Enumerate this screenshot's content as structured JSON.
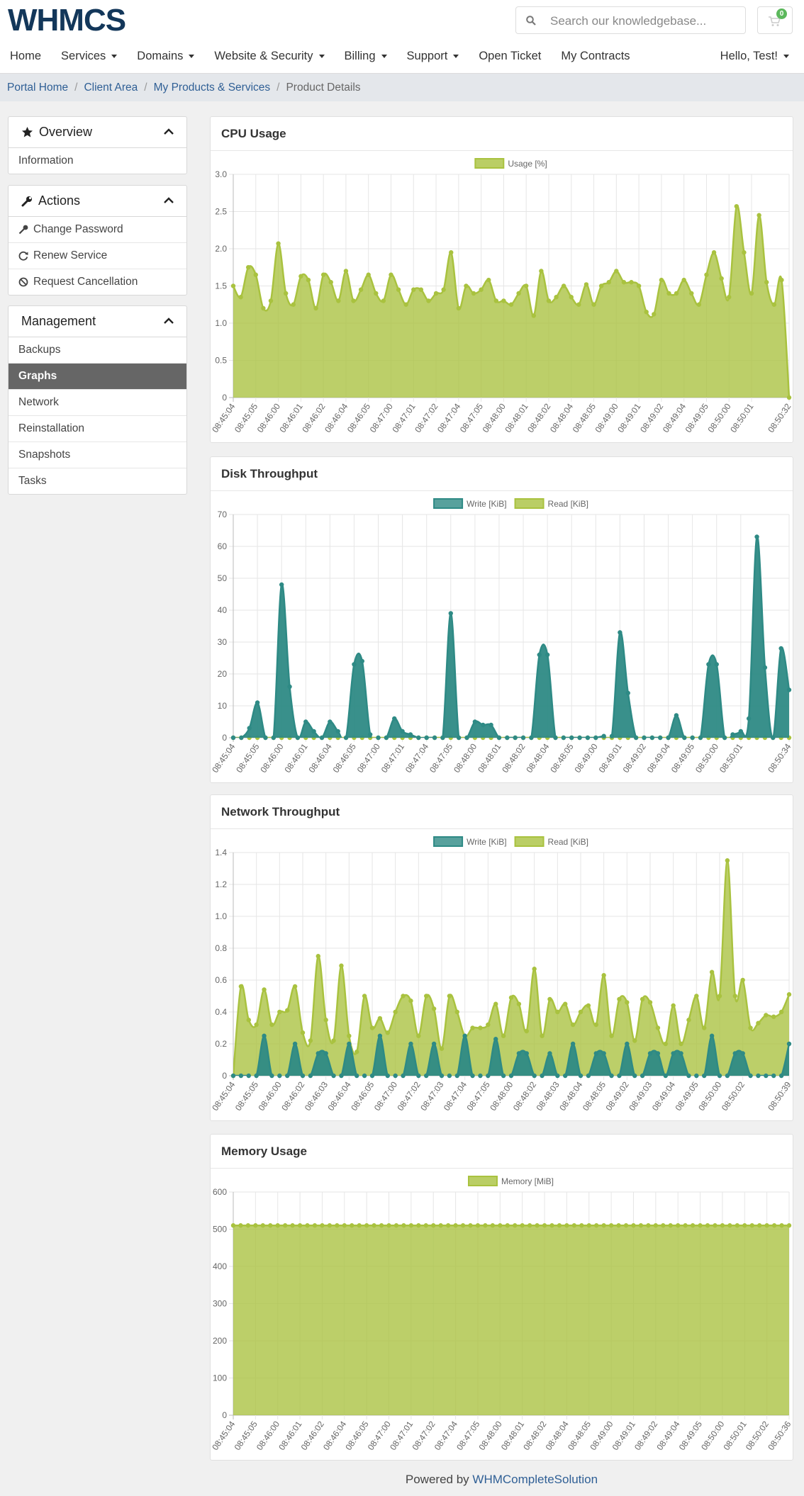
{
  "header": {
    "logo": "WHMCS",
    "search_placeholder": "Search our knowledgebase...",
    "cart_count": 0
  },
  "nav": {
    "items": [
      {
        "label": "Home",
        "dropdown": false
      },
      {
        "label": "Services",
        "dropdown": true
      },
      {
        "label": "Domains",
        "dropdown": true
      },
      {
        "label": "Website & Security",
        "dropdown": true
      },
      {
        "label": "Billing",
        "dropdown": true
      },
      {
        "label": "Support",
        "dropdown": true
      },
      {
        "label": "Open Ticket",
        "dropdown": false
      },
      {
        "label": "My Contracts",
        "dropdown": false
      }
    ],
    "user": "Hello, Test!"
  },
  "breadcrumb": [
    "Portal Home",
    "Client Area",
    "My Products & Services",
    "Product Details"
  ],
  "sidebar": [
    {
      "title": "Overview",
      "items": [
        "Information"
      ]
    },
    {
      "title": "Actions",
      "items": [
        "Change Password",
        "Renew Service",
        "Request Cancellation"
      ]
    },
    {
      "title": "Management",
      "items": [
        "Backups",
        "Graphs",
        "Network",
        "Reinstallation",
        "Snapshots",
        "Tasks"
      ],
      "active": 1
    }
  ],
  "footer": {
    "text": "Powered by",
    "link": "WHMCompleteSolution"
  },
  "chart_data": [
    {
      "type": "area",
      "title": "CPU Usage",
      "categories": [
        "08:45:04",
        null,
        null,
        "08:45:05",
        null,
        null,
        "08:46:00",
        null,
        null,
        "08:46:01",
        null,
        null,
        "08:46:02",
        null,
        null,
        "08:46:04",
        null,
        null,
        "08:46:05",
        null,
        null,
        "08:47:00",
        null,
        null,
        "08:47:01",
        null,
        null,
        "08:47:02",
        null,
        null,
        "08:47:04",
        null,
        null,
        "08:47:05",
        null,
        null,
        "08:48:00",
        null,
        null,
        "08:48:01",
        null,
        null,
        "08:48:02",
        null,
        null,
        "08:48:04",
        null,
        null,
        "08:48:05",
        null,
        null,
        "08:49:00",
        null,
        null,
        "08:49:01",
        null,
        null,
        "08:49:02",
        null,
        null,
        "08:49:04",
        null,
        null,
        "08:49:05",
        null,
        null,
        "08:50:00",
        null,
        null,
        "08:50:01",
        null,
        null,
        null,
        null,
        "08:50:32"
      ],
      "series": [
        {
          "name": "Usage [%]",
          "color": "#a9c23f",
          "values": [
            1.5,
            1.35,
            1.75,
            1.65,
            1.2,
            1.3,
            2.07,
            1.4,
            1.25,
            1.63,
            1.58,
            1.2,
            1.65,
            1.55,
            1.3,
            1.7,
            1.3,
            1.45,
            1.65,
            1.4,
            1.3,
            1.65,
            1.45,
            1.25,
            1.45,
            1.45,
            1.3,
            1.4,
            1.45,
            1.95,
            1.2,
            1.5,
            1.4,
            1.45,
            1.58,
            1.3,
            1.3,
            1.25,
            1.4,
            1.5,
            1.1,
            1.7,
            1.3,
            1.35,
            1.5,
            1.35,
            1.25,
            1.52,
            1.25,
            1.5,
            1.55,
            1.7,
            1.55,
            1.55,
            1.5,
            1.15,
            1.12,
            1.58,
            1.4,
            1.4,
            1.58,
            1.4,
            1.25,
            1.65,
            1.95,
            1.6,
            1.35,
            2.57,
            1.95,
            1.4,
            2.45,
            1.55,
            1.25,
            1.58,
            0
          ]
        }
      ],
      "ylim": [
        0,
        3
      ],
      "yticks": [
        0,
        0.5,
        {
          "value": 1,
          "label": "1.0"
        },
        1.5,
        {
          "value": 2,
          "label": "2.0"
        },
        2.5,
        {
          "value": 3,
          "label": "3.0"
        }
      ],
      "grid": true,
      "legend": "top"
    },
    {
      "type": "area",
      "title": "Disk Throughput",
      "categories": [
        "08:45:04",
        null,
        null,
        "08:45:05",
        null,
        null,
        "08:46:00",
        null,
        null,
        "08:46:01",
        null,
        null,
        "08:46:04",
        null,
        null,
        "08:46:05",
        null,
        null,
        "08:47:00",
        null,
        null,
        "08:47:01",
        null,
        null,
        "08:47:04",
        null,
        null,
        "08:47:05",
        null,
        null,
        "08:48:00",
        null,
        null,
        "08:48:01",
        null,
        null,
        "08:48:02",
        null,
        null,
        "08:48:04",
        null,
        null,
        "08:48:05",
        null,
        null,
        "08:49:00",
        null,
        null,
        "08:49:01",
        null,
        null,
        "08:49:02",
        null,
        null,
        "08:49:04",
        null,
        null,
        "08:49:05",
        null,
        null,
        "08:50:00",
        null,
        null,
        "08:50:01",
        null,
        null,
        null,
        null,
        null,
        "08:50:34"
      ],
      "series": [
        {
          "name": "Write [KiB]",
          "color": "#2e8a85",
          "values": [
            0,
            0,
            3,
            11,
            0,
            0,
            48,
            16,
            0,
            5,
            2,
            0,
            5,
            2,
            0,
            23,
            24,
            1,
            0,
            0,
            6,
            2,
            1,
            0,
            0,
            0,
            0,
            39,
            0,
            0,
            5,
            4,
            4,
            0,
            0,
            0,
            0,
            0,
            26,
            26,
            0,
            0,
            0,
            0,
            0,
            0,
            0.5,
            0.5,
            33,
            14,
            0,
            0,
            0,
            0,
            0,
            7,
            0,
            0,
            0,
            23,
            23,
            0,
            1,
            2,
            6,
            63,
            22,
            0,
            28,
            15
          ]
        },
        {
          "name": "Read [KiB]",
          "color": "#a9c23f",
          "values": [
            0,
            0,
            0,
            0,
            0,
            0,
            0,
            0,
            0,
            0,
            0,
            0,
            0,
            0,
            0,
            0,
            0,
            0,
            0,
            0,
            0,
            0,
            0,
            0,
            0,
            0,
            0,
            0,
            0,
            0,
            0,
            0,
            0,
            0,
            0,
            0,
            0,
            0,
            0,
            0,
            0,
            0,
            0,
            0,
            0,
            0,
            0,
            0,
            0,
            0,
            0,
            0,
            0,
            0,
            0,
            0,
            0,
            0,
            0,
            0,
            0,
            0,
            0,
            0,
            0,
            0,
            0,
            0,
            0,
            0
          ]
        }
      ],
      "ylim": [
        0,
        70
      ],
      "yticks": [
        0,
        10,
        20,
        30,
        40,
        50,
        60,
        70
      ],
      "grid": true,
      "legend": "top"
    },
    {
      "type": "area",
      "title": "Network Throughput",
      "categories": [
        "08:45:04",
        null,
        null,
        "08:45:05",
        null,
        null,
        "08:46:00",
        null,
        null,
        "08:46:02",
        null,
        null,
        "08:46:03",
        null,
        null,
        "08:46:04",
        null,
        null,
        "08:46:05",
        null,
        null,
        "08:47:00",
        null,
        null,
        "08:47:02",
        null,
        null,
        "08:47:03",
        null,
        null,
        "08:47:04",
        null,
        null,
        "08:47:05",
        null,
        null,
        "08:48:00",
        null,
        null,
        "08:48:02",
        null,
        null,
        "08:48:03",
        null,
        null,
        "08:48:04",
        null,
        null,
        "08:48:05",
        null,
        null,
        "08:49:02",
        null,
        null,
        "08:49:03",
        null,
        null,
        "08:49:04",
        null,
        null,
        "08:49:05",
        null,
        null,
        "08:50:00",
        null,
        null,
        "08:50:02",
        null,
        null,
        null,
        null,
        null,
        "08:50:39"
      ],
      "series": [
        {
          "name": "Write [KiB]",
          "color": "#2e8a85",
          "values": [
            0,
            0,
            0,
            0,
            0.25,
            0,
            0,
            0,
            0.2,
            0,
            0,
            0.14,
            0.14,
            0,
            0,
            0.2,
            0,
            0,
            0,
            0.25,
            0,
            0,
            0,
            0.2,
            0,
            0,
            0.2,
            0,
            0,
            0,
            0.25,
            0,
            0,
            0,
            0.23,
            0,
            0,
            0.14,
            0.14,
            0,
            0,
            0.14,
            0,
            0,
            0.2,
            0,
            0,
            0.14,
            0.14,
            0,
            0,
            0.2,
            0,
            0,
            0.14,
            0.14,
            0,
            0.14,
            0.14,
            0,
            0,
            0,
            0.25,
            0,
            0,
            0.14,
            0.14,
            0,
            0,
            0,
            0,
            0,
            0.2
          ]
        },
        {
          "name": "Read [KiB]",
          "color": "#a9c23f",
          "values": [
            0,
            0.56,
            0.35,
            0.32,
            0.54,
            0.32,
            0.4,
            0.41,
            0.56,
            0.27,
            0.22,
            0.75,
            0.35,
            0.22,
            0.69,
            0.25,
            0.15,
            0.5,
            0.3,
            0.36,
            0.27,
            0.4,
            0.5,
            0.47,
            0.25,
            0.5,
            0.42,
            0.17,
            0.5,
            0.4,
            0.25,
            0.3,
            0.3,
            0.32,
            0.45,
            0.25,
            0.49,
            0.45,
            0.28,
            0.67,
            0.25,
            0.48,
            0.4,
            0.45,
            0.32,
            0.4,
            0.44,
            0.32,
            0.63,
            0.25,
            0.48,
            0.46,
            0.22,
            0.48,
            0.46,
            0.3,
            0.2,
            0.44,
            0.2,
            0.35,
            0.5,
            0.3,
            0.65,
            0.5,
            1.35,
            0.5,
            0.6,
            0.3,
            0.33,
            0.38,
            0.37,
            0.4,
            0.51
          ]
        }
      ],
      "ylim": [
        0,
        1.4
      ],
      "yticks": [
        0,
        0.2,
        0.4,
        0.6,
        0.8,
        {
          "value": 1,
          "label": "1.0"
        },
        1.2,
        1.4
      ],
      "grid": true,
      "legend": "top"
    },
    {
      "type": "area",
      "title": "Memory Usage",
      "categories": [
        "08:45:04",
        null,
        null,
        "08:45:05",
        null,
        null,
        "08:46:00",
        null,
        null,
        "08:46:01",
        null,
        null,
        "08:46:02",
        null,
        null,
        "08:46:04",
        null,
        null,
        "08:46:05",
        null,
        null,
        "08:47:00",
        null,
        null,
        "08:47:01",
        null,
        null,
        "08:47:02",
        null,
        null,
        "08:47:04",
        null,
        null,
        "08:47:05",
        null,
        null,
        "08:48:00",
        null,
        null,
        "08:48:01",
        null,
        null,
        "08:48:02",
        null,
        null,
        "08:48:04",
        null,
        null,
        "08:48:05",
        null,
        null,
        "08:49:00",
        null,
        null,
        "08:49:01",
        null,
        null,
        "08:49:02",
        null,
        null,
        "08:49:04",
        null,
        null,
        "08:49:05",
        null,
        null,
        "08:50:00",
        null,
        null,
        "08:50:01",
        null,
        null,
        "08:50:02",
        null,
        null,
        "08:50:36"
      ],
      "series": [
        {
          "name": "Memory [MiB]",
          "color": "#a9c23f",
          "values": [
            510,
            510,
            510,
            510,
            510,
            510,
            510,
            510,
            510,
            510,
            510,
            510,
            510,
            510,
            510,
            510,
            510,
            510,
            510,
            510,
            510,
            510,
            510,
            510,
            510,
            510,
            510,
            510,
            510,
            510,
            510,
            510,
            510,
            510,
            510,
            510,
            510,
            510,
            510,
            510,
            510,
            510,
            510,
            510,
            510,
            510,
            510,
            510,
            510,
            510,
            510,
            510,
            510,
            510,
            510,
            510,
            510,
            510,
            510,
            510,
            510,
            510,
            510,
            510,
            510,
            510,
            510,
            510,
            510,
            510,
            510,
            510,
            510,
            510,
            510,
            510
          ]
        }
      ],
      "ylim": [
        0,
        600
      ],
      "yticks": [
        0,
        100,
        200,
        300,
        400,
        500,
        600
      ],
      "grid": true,
      "legend": "top"
    }
  ]
}
